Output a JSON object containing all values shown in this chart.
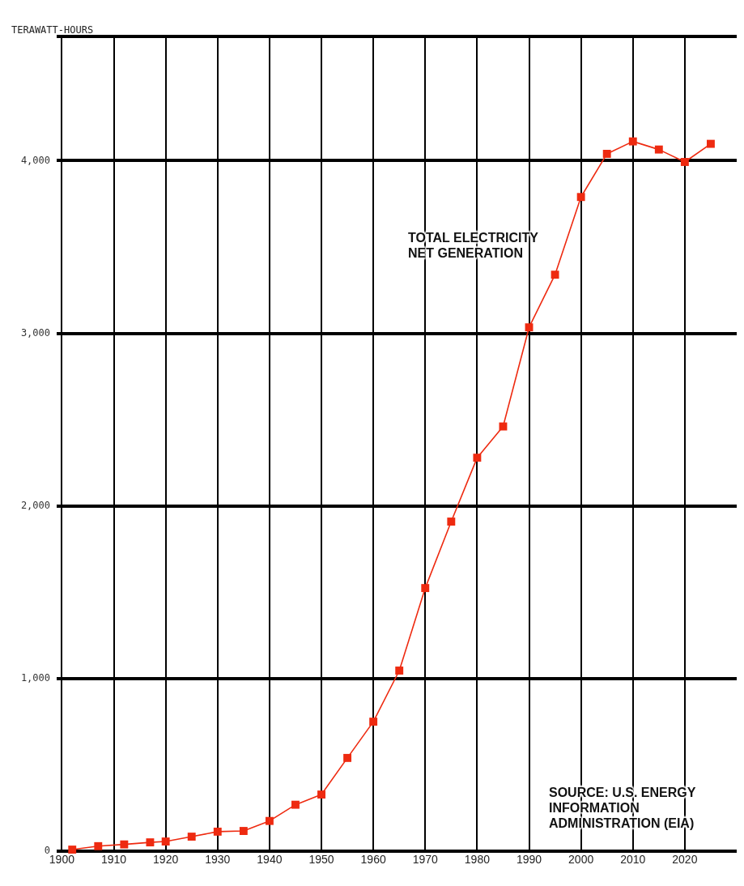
{
  "chart_data": {
    "type": "line",
    "ylabel": "TERAWATT-HOURS",
    "x": [
      1902,
      1907,
      1912,
      1917,
      1920,
      1925,
      1930,
      1935,
      1940,
      1945,
      1950,
      1955,
      1960,
      1965,
      1970,
      1975,
      1980,
      1985,
      1990,
      1995,
      2000,
      2005,
      2010,
      2015,
      2020,
      2025
    ],
    "series": [
      {
        "color": "#ee2a10",
        "values": [
          10,
          30,
          40,
          52,
          57,
          85,
          114,
          118,
          176,
          270,
          329,
          541,
          751,
          1047,
          1525,
          1910,
          2280,
          2461,
          3035,
          3340,
          3790,
          4040,
          4112,
          4065,
          3993,
          4098
        ]
      }
    ],
    "xlim": [
      1899,
      2030
    ],
    "xticks": [
      1900,
      1910,
      1920,
      1930,
      1940,
      1950,
      1960,
      1970,
      1980,
      1990,
      2000,
      2010,
      2020
    ],
    "ylim": [
      0,
      4720
    ],
    "yticks": [
      {
        "value": 0,
        "label": "0"
      },
      {
        "value": 1000,
        "label": "1,000"
      },
      {
        "value": 2000,
        "label": "2,000"
      },
      {
        "value": 3000,
        "label": "3,000"
      },
      {
        "value": 4000,
        "label": "4,000"
      }
    ],
    "grid": true,
    "marker": "square",
    "line_style": "solid",
    "annotations": [
      "TOTAL ELECTRICITY NET GENERATION",
      "SOURCE: U.S. ENERGY INFORMATION ADMINISTRATION (EIA)"
    ]
  }
}
